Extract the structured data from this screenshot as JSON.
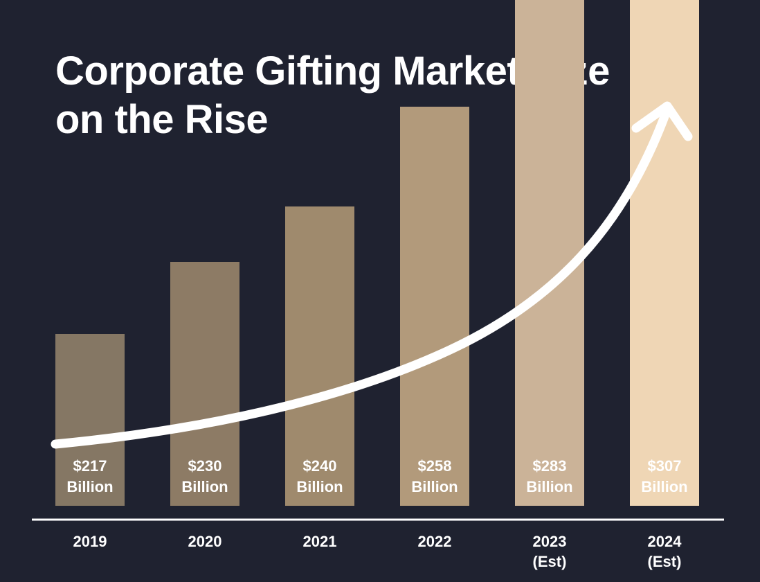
{
  "title": {
    "line1": "Corporate Gifting Market Size",
    "line2": "on the Rise"
  },
  "chart_data": {
    "type": "bar",
    "title": "Corporate Gifting Market Size on the Rise",
    "xlabel": "",
    "ylabel": "",
    "unit": "Billion",
    "categories": [
      {
        "year": "2019",
        "note": ""
      },
      {
        "year": "2020",
        "note": ""
      },
      {
        "year": "2021",
        "note": ""
      },
      {
        "year": "2022",
        "note": ""
      },
      {
        "year": "2023",
        "note": "(Est)"
      },
      {
        "year": "2024",
        "note": "(Est)"
      }
    ],
    "values": [
      217,
      230,
      240,
      258,
      283,
      307
    ],
    "value_labels": [
      "$217",
      "$230",
      "$240",
      "$258",
      "$283",
      "$307"
    ],
    "unit_labels": [
      "Billion",
      "Billion",
      "Billion",
      "Billion",
      "Billion",
      "Billion"
    ],
    "bar_colors": [
      "#857764",
      "#8d7b65",
      "#9f8a6d",
      "#b29a7b",
      "#cbb398",
      "#efd6b5"
    ],
    "trend_arrow": true,
    "grid": false,
    "legend": "none"
  },
  "colors": {
    "background": "#1f2230",
    "text": "#ffffff",
    "axis": "#ffffff",
    "arrow": "#ffffff"
  }
}
